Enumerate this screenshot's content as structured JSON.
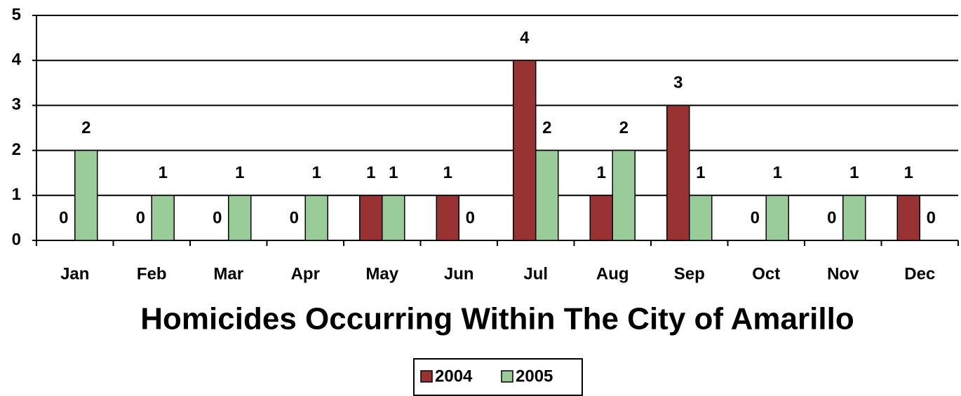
{
  "chart_data": {
    "type": "bar",
    "title": "Homicides Occurring Within The City of Amarillo",
    "categories": [
      "Jan",
      "Feb",
      "Mar",
      "Apr",
      "May",
      "Jun",
      "Jul",
      "Aug",
      "Sep",
      "Oct",
      "Nov",
      "Dec"
    ],
    "series": [
      {
        "name": "2004",
        "color": "#993333",
        "values": [
          0,
          0,
          0,
          0,
          1,
          1,
          4,
          1,
          3,
          0,
          0,
          1
        ]
      },
      {
        "name": "2005",
        "color": "#99cc99",
        "values": [
          2,
          1,
          1,
          1,
          1,
          0,
          2,
          2,
          1,
          1,
          1,
          0
        ]
      }
    ],
    "ylim": [
      0,
      5
    ],
    "yticks": [
      0,
      1,
      2,
      3,
      4,
      5
    ],
    "grid": true,
    "legend": "bottom"
  }
}
